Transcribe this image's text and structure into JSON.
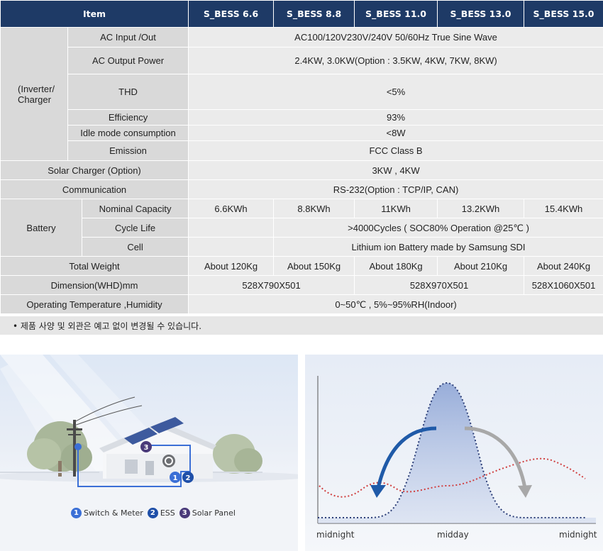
{
  "table": {
    "header": {
      "item": "Item",
      "models": [
        "S_BESS 6.6",
        "S_BESS 8.8",
        "S_BESS 11.0",
        "S_BESS 13.0",
        "S_BESS 15.0"
      ]
    },
    "inverter_group": "(Inverter/\nCharger",
    "rows": {
      "ac_inout": {
        "label": "AC  Input /Out",
        "value": "AC100/120V230V/240V   50/60Hz True Sine Wave"
      },
      "ac_output": {
        "label": "AC Output Power",
        "value": "2.4KW, 3.0KW(Option : 3.5KW, 4KW, 7KW, 8KW)"
      },
      "thd": {
        "label": "THD",
        "value": "<5%"
      },
      "efficiency": {
        "label": "Efficiency",
        "value": "93%"
      },
      "idle": {
        "label": "Idle mode consumption",
        "value": "<8W"
      },
      "emission": {
        "label": "Emission",
        "value": "FCC Class B"
      },
      "solar": {
        "label": "Solar Charger (Option)",
        "value": "3KW , 4KW"
      },
      "comm": {
        "label": "Communication",
        "value": "RS-232(Option : TCP/IP, CAN)"
      },
      "battery_group": "Battery",
      "nominal": {
        "label": "Nominal Capacity",
        "values": [
          "6.6KWh",
          "8.8KWh",
          "11KWh",
          "13.2KWh",
          "15.4KWh"
        ]
      },
      "cycle": {
        "label": "Cycle Life",
        "value": ">4000Cycles  ( SOC80% Operation   @25℃ )"
      },
      "cell": {
        "label": "Cell",
        "value": "Lithium ion Battery made by Samsung SDI"
      },
      "weight": {
        "label": "Total Weight",
        "values": [
          "About 120Kg",
          "About 150Kg",
          "About 180Kg",
          "About 210Kg",
          "About 240Kg"
        ]
      },
      "dimension": {
        "label": "Dimension(WHD)mm",
        "values": [
          "528X790X501",
          "528X970X501",
          "528X1060X501"
        ]
      },
      "temp": {
        "label": "Operating Temperature ,Humidity",
        "value": "0~50℃ , 5%~95%RH(Indoor)"
      }
    },
    "note": "• 제품 사양 및 외관은 예고 없이 변경될 수 있습니다."
  },
  "house_illustration": {
    "legend": [
      {
        "num": "1",
        "label": "Switch & Meter",
        "color": "#3b6fd6"
      },
      {
        "num": "2",
        "label": "ESS",
        "color": "#1f4fa8"
      },
      {
        "num": "3",
        "label": "Solar Panel",
        "color": "#4a3a7a"
      }
    ]
  },
  "load_chart": {
    "x_labels": [
      "midnight",
      "midday",
      "midnight"
    ],
    "colors": {
      "solar": "#2d3f78",
      "load": "#d04040",
      "charge_arrow": "#1f5aa8",
      "discharge_arrow": "#a8a8a8"
    }
  },
  "colors": {
    "header_bg": "#1e3a66",
    "cell_bg": "#e6e6e6"
  }
}
